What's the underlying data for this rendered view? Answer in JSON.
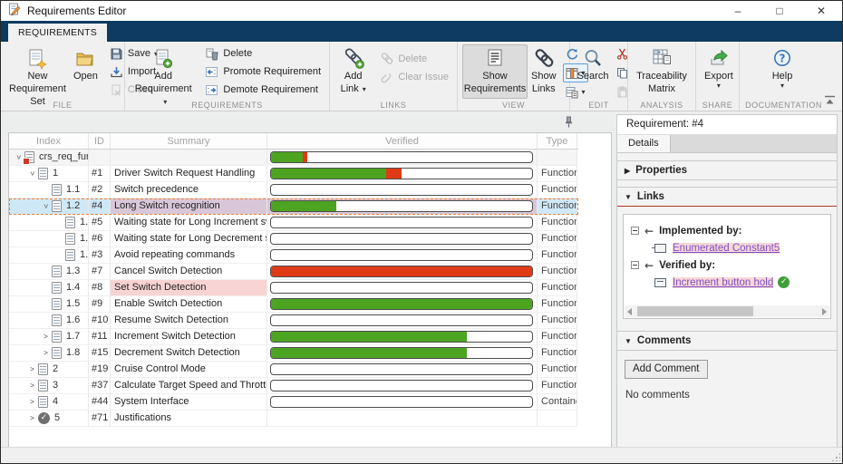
{
  "window": {
    "title": "Requirements Editor",
    "minimize": "–",
    "maximize": "□",
    "close": "✕"
  },
  "ribbon": {
    "tab_label": "REQUIREMENTS",
    "file": {
      "label": "FILE",
      "new_label": "New Requirement Set",
      "open_label": "Open",
      "save_label": "Save",
      "import_label": "Import",
      "close_label": "Close"
    },
    "requirements": {
      "label": "REQUIREMENTS",
      "add_label": "Add Requirement",
      "delete_label": "Delete",
      "promote_label": "Promote Requirement",
      "demote_label": "Demote Requirement"
    },
    "links": {
      "label": "LINKS",
      "add_label": "Add Link",
      "delete_label": "Delete",
      "clear_label": "Clear Issue"
    },
    "view": {
      "label": "VIEW",
      "show_requirements_label": "Show Requirements",
      "show_links_label": "Show Links"
    },
    "edit": {
      "label": "EDIT",
      "search_label": "Search"
    },
    "analysis": {
      "label": "ANALYSIS",
      "traceability_label": "Traceability Matrix"
    },
    "share": {
      "label": "SHARE",
      "export_label": "Export"
    },
    "documentation": {
      "label": "DOCUMENTATION",
      "help_label": "Help"
    }
  },
  "table": {
    "columns": [
      "Index",
      "ID",
      "Summary",
      "Verified",
      "Type"
    ],
    "rows": [
      {
        "index": "crs_req_func_...",
        "id": "",
        "summary": "",
        "type": "",
        "level": 0,
        "chevron": "expanded",
        "icon": "reqset",
        "bar": [
          12,
          2
        ],
        "shade": true
      },
      {
        "index": "1",
        "id": "#1",
        "summary": "Driver Switch Request Handling",
        "type": "Functional",
        "level": 1,
        "chevron": "expanded",
        "icon": "req",
        "bar": [
          44,
          6
        ]
      },
      {
        "index": "1.1",
        "id": "#2",
        "summary": "Switch precedence",
        "type": "Functional",
        "level": 2,
        "chevron": "none",
        "icon": "req",
        "bar": [
          0,
          0
        ]
      },
      {
        "index": "1.2",
        "id": "#4",
        "summary": "Long Switch recognition",
        "type": "Functional",
        "level": 2,
        "chevron": "expanded",
        "icon": "req",
        "bar": [
          25,
          0
        ],
        "selected": true
      },
      {
        "index": "1.2.1",
        "id": "#5",
        "summary": "Waiting state for Long Increment switch...",
        "type": "Functional",
        "level": 3,
        "chevron": "none",
        "icon": "req",
        "bar": [
          0,
          0
        ]
      },
      {
        "index": "1.2.2",
        "id": "#6",
        "summary": "Waiting state for Long Decrement switc...",
        "type": "Functional",
        "level": 3,
        "chevron": "none",
        "icon": "req",
        "bar": [
          0,
          0
        ]
      },
      {
        "index": "1.2.3",
        "id": "#3",
        "summary": "Avoid repeating commands",
        "type": "Functional",
        "level": 3,
        "chevron": "none",
        "icon": "req",
        "bar": [
          0,
          0
        ]
      },
      {
        "index": "1.3",
        "id": "#7",
        "summary": "Cancel Switch Detection",
        "type": "Functional",
        "level": 2,
        "chevron": "none",
        "icon": "req",
        "bar": [
          0,
          100
        ]
      },
      {
        "index": "1.4",
        "id": "#8",
        "summary": "Set Switch Detection",
        "type": "Functional",
        "level": 2,
        "chevron": "none",
        "icon": "req",
        "bar": [
          0,
          0
        ],
        "summary_pink": true
      },
      {
        "index": "1.5",
        "id": "#9",
        "summary": "Enable Switch Detection",
        "type": "Functional",
        "level": 2,
        "chevron": "none",
        "icon": "req",
        "bar": [
          100,
          0
        ]
      },
      {
        "index": "1.6",
        "id": "#10",
        "summary": "Resume Switch Detection",
        "type": "Functional",
        "level": 2,
        "chevron": "none",
        "icon": "req",
        "bar": [
          0,
          0
        ]
      },
      {
        "index": "1.7",
        "id": "#11",
        "summary": "Increment Switch Detection",
        "type": "Functional",
        "level": 2,
        "chevron": "collapsed",
        "icon": "req",
        "bar": [
          75,
          0
        ]
      },
      {
        "index": "1.8",
        "id": "#15",
        "summary": "Decrement Switch Detection",
        "type": "Functional",
        "level": 2,
        "chevron": "collapsed",
        "icon": "req",
        "bar": [
          75,
          0
        ]
      },
      {
        "index": "2",
        "id": "#19",
        "summary": "Cruise Control Mode",
        "type": "Functional",
        "level": 1,
        "chevron": "collapsed",
        "icon": "req",
        "bar": [
          0,
          0
        ]
      },
      {
        "index": "3",
        "id": "#37",
        "summary": "Calculate Target Speed and Throttle Value",
        "type": "Functional",
        "level": 1,
        "chevron": "collapsed",
        "icon": "req",
        "bar": [
          0,
          0
        ]
      },
      {
        "index": "4",
        "id": "#44",
        "summary": "System Interface",
        "type": "Container",
        "level": 1,
        "chevron": "collapsed",
        "icon": "req",
        "bar": [
          0,
          0
        ]
      },
      {
        "index": "5",
        "id": "#71",
        "summary": "Justifications",
        "type": "",
        "level": 1,
        "chevron": "collapsed",
        "icon": "justification",
        "bar": null
      }
    ]
  },
  "details": {
    "panel_title": "Requirement: #4",
    "tab": "Details",
    "properties_label": "Properties",
    "links_label": "Links",
    "implemented_by": "Implemented by:",
    "implemented_link": "Enumerated Constant5",
    "verified_by": "Verified by:",
    "verified_link": "Increment button hold",
    "comments_label": "Comments",
    "add_comment_label": "Add Comment",
    "no_comments": "No comments"
  },
  "colors": {
    "verified_green": "#4CA420",
    "failed_red": "#DF3A16",
    "selection_blue": "#CFE8F8",
    "selection_purple": "#D9C7D9",
    "issue_pink": "#F8D3D3",
    "ribbon_navy": "#0D3B61",
    "link_purple": "#7A52C9"
  }
}
